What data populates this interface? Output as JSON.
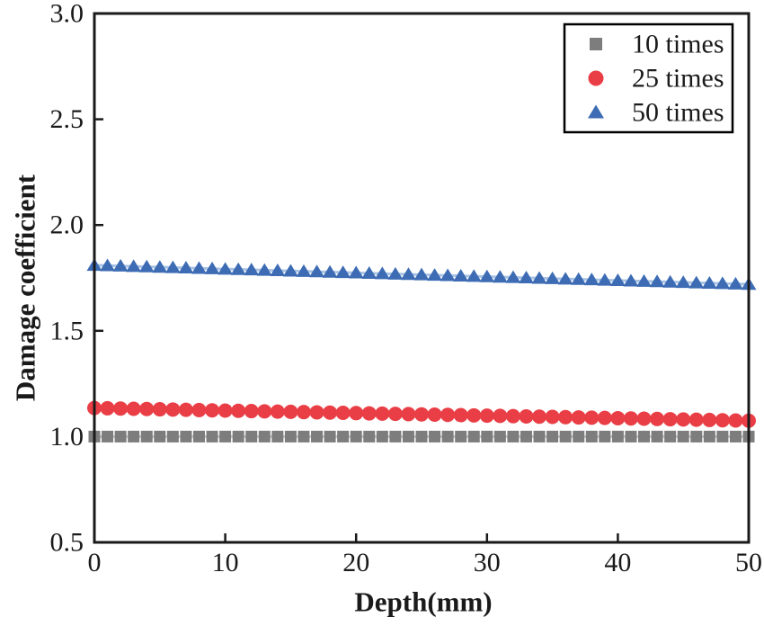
{
  "figure": {
    "background": "#ffffff",
    "frame_color": "#1a1a1a",
    "text_color": "#1a1a1a"
  },
  "chart_data": {
    "type": "scatter",
    "title": "",
    "xlabel": "Depth(mm)",
    "ylabel": "Damage coefficient",
    "xlim": [
      0,
      50
    ],
    "ylim": [
      0.5,
      3.0
    ],
    "xticks": [
      0,
      10,
      20,
      30,
      40,
      50
    ],
    "yticks": [
      0.5,
      1.0,
      1.5,
      2.0,
      2.5,
      3.0
    ],
    "xtick_labels": [
      "0",
      "10",
      "20",
      "30",
      "40",
      "50"
    ],
    "ytick_labels": [
      "0.5",
      "1.0",
      "1.5",
      "2.0",
      "2.5",
      "3.0"
    ],
    "grid": false,
    "legend_position": "top-right",
    "x": [
      0,
      1,
      2,
      3,
      4,
      5,
      6,
      7,
      8,
      9,
      10,
      11,
      12,
      13,
      14,
      15,
      16,
      17,
      18,
      19,
      20,
      21,
      22,
      23,
      24,
      25,
      26,
      27,
      28,
      29,
      30,
      31,
      32,
      33,
      34,
      35,
      36,
      37,
      38,
      39,
      40,
      41,
      42,
      43,
      44,
      45,
      46,
      47,
      48,
      49,
      50
    ],
    "series": [
      {
        "name": "10 times",
        "marker": "square",
        "color": "#7d7d7d",
        "line_color": "#c6c6c6",
        "values": [
          1.0,
          1.0,
          1.0,
          1.0,
          1.0,
          1.0,
          1.0,
          1.0,
          1.0,
          1.0,
          1.0,
          1.0,
          1.0,
          1.0,
          1.0,
          1.0,
          1.0,
          1.0,
          1.0,
          1.0,
          1.0,
          1.0,
          1.0,
          1.0,
          1.0,
          1.0,
          1.0,
          1.0,
          1.0,
          1.0,
          1.0,
          1.0,
          1.0,
          1.0,
          1.0,
          1.0,
          1.0,
          1.0,
          1.0,
          1.0,
          1.0,
          1.0,
          1.0,
          1.0,
          1.0,
          1.0,
          1.0,
          1.0,
          1.0,
          1.0,
          1.0
        ]
      },
      {
        "name": "25 times",
        "marker": "circle",
        "color": "#ea3e46",
        "line_color": "#f6adb0",
        "values": [
          1.135,
          1.1338,
          1.1326,
          1.1314,
          1.1302,
          1.129,
          1.1278,
          1.1266,
          1.1254,
          1.1242,
          1.123,
          1.1218,
          1.1206,
          1.1194,
          1.1182,
          1.117,
          1.1158,
          1.1146,
          1.1134,
          1.1122,
          1.111,
          1.1098,
          1.1086,
          1.1074,
          1.1062,
          1.105,
          1.1038,
          1.1026,
          1.1014,
          1.1002,
          1.099,
          1.0978,
          1.0966,
          1.0954,
          1.0942,
          1.093,
          1.0918,
          1.0906,
          1.0894,
          1.0882,
          1.087,
          1.0858,
          1.0846,
          1.0834,
          1.0822,
          1.081,
          1.0798,
          1.0786,
          1.0774,
          1.0762,
          1.075
        ]
      },
      {
        "name": "50 times",
        "marker": "triangle",
        "color": "#3d6cb4",
        "line_color": "#a9c3e4",
        "values": [
          1.81,
          1.8082,
          1.8064,
          1.8046,
          1.8028,
          1.801,
          1.7992,
          1.7974,
          1.7956,
          1.7938,
          1.792,
          1.7902,
          1.7884,
          1.7866,
          1.7848,
          1.783,
          1.7812,
          1.7794,
          1.7776,
          1.7758,
          1.774,
          1.7722,
          1.7704,
          1.7686,
          1.7668,
          1.765,
          1.7632,
          1.7614,
          1.7596,
          1.7578,
          1.756,
          1.7542,
          1.7524,
          1.7506,
          1.7488,
          1.747,
          1.7452,
          1.7434,
          1.7416,
          1.7398,
          1.738,
          1.7362,
          1.7344,
          1.7326,
          1.7308,
          1.729,
          1.7272,
          1.7254,
          1.7236,
          1.7218,
          1.72
        ]
      }
    ]
  }
}
